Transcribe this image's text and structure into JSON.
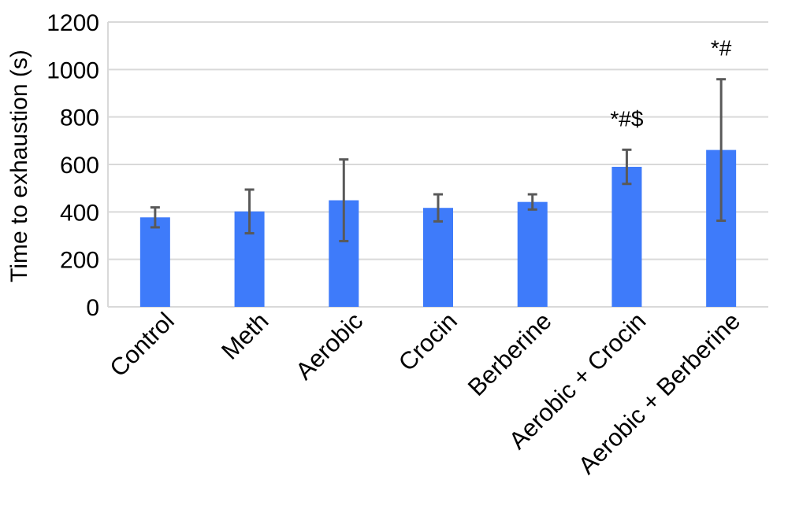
{
  "chart_data": {
    "type": "bar",
    "ylabel": "Time to exhaustion (s)",
    "xlabel": "",
    "ylim": [
      0,
      1200
    ],
    "yticks": [
      0,
      200,
      400,
      600,
      800,
      1000,
      1200
    ],
    "grid": true,
    "bar_color": "#3e7bfa",
    "error_bar_color": "#595959",
    "grid_color": "#d9d9d9",
    "categories": [
      "Control",
      "Meth",
      "Aerobic",
      "Crocin",
      "Berberine",
      "Aerobic + Crocin",
      "Aerobic + Berberine"
    ],
    "values": [
      377,
      402,
      449,
      417,
      442,
      590,
      661
    ],
    "errors": [
      42,
      92,
      172,
      57,
      32,
      72,
      298
    ],
    "annotations": [
      "",
      "",
      "",
      "",
      "",
      "*#$",
      "*#"
    ]
  }
}
